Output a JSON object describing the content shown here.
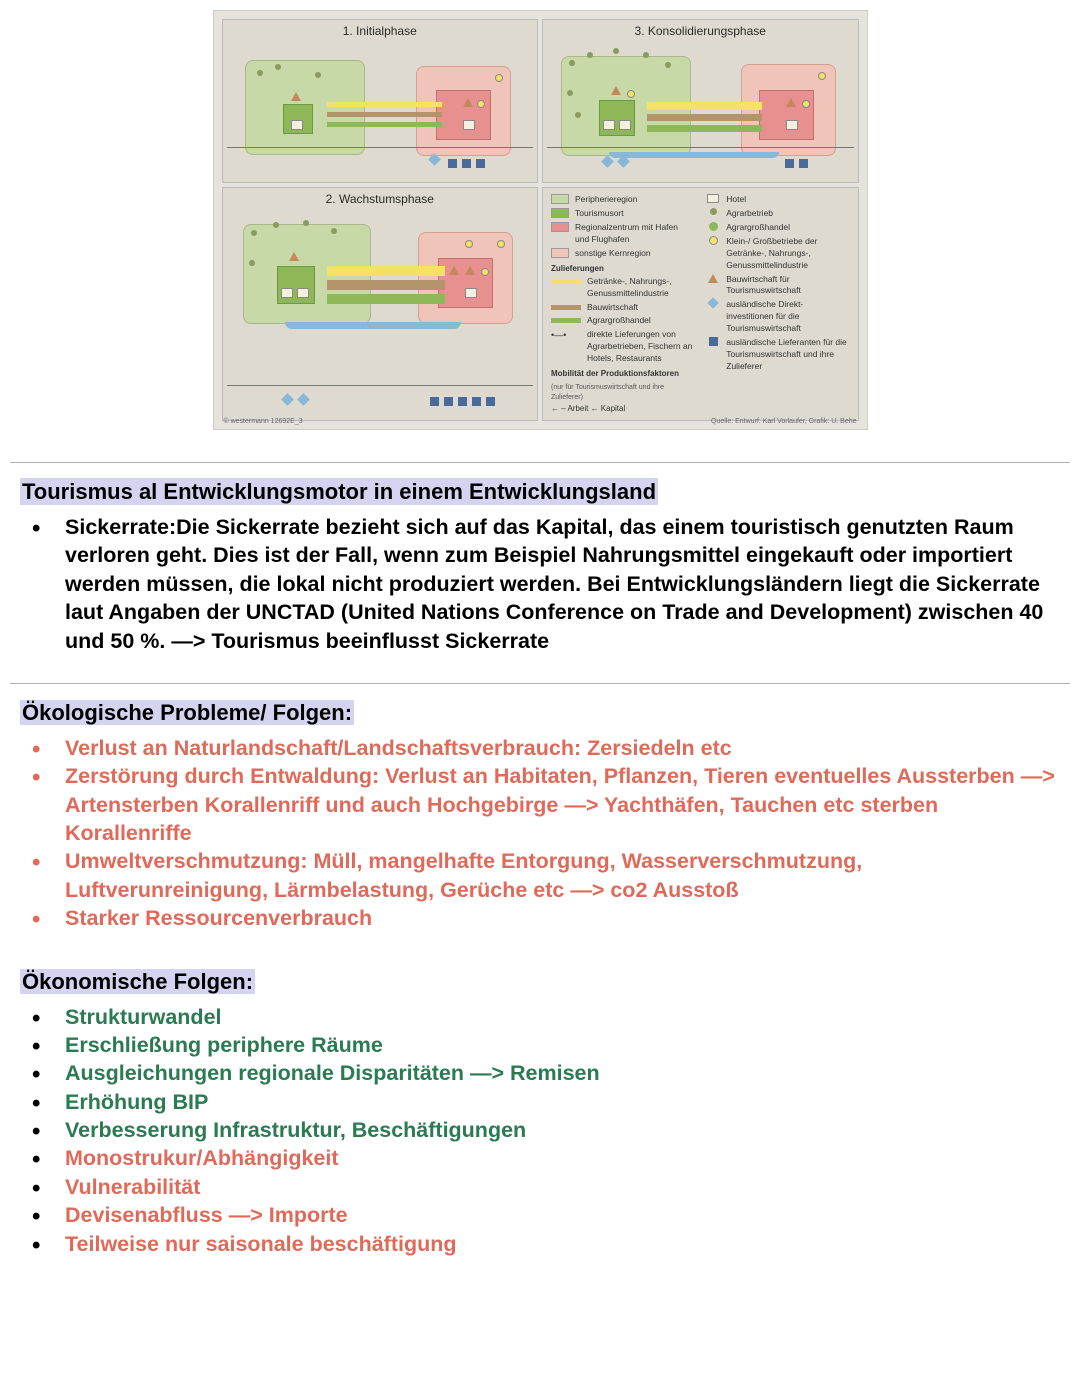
{
  "figure": {
    "panel1_title": "1. Initialphase",
    "panel2_title": "2. Wachstumsphase",
    "panel3_title": "3. Konsolidierungsphase",
    "legend": {
      "col1": [
        {
          "type": "swatch",
          "color": "#c8d9a8",
          "label": "Peripherieregion"
        },
        {
          "type": "swatch",
          "color": "#8eb858",
          "label": "Tourismusort"
        },
        {
          "type": "swatch",
          "color": "#e89090",
          "label": "Regionalzentrum mit Hafen und Flughafen"
        },
        {
          "type": "swatch",
          "color": "#f0c4b8",
          "label": "sonstige Kernregion"
        }
      ],
      "head1": "Zulieferungen",
      "arrows": [
        {
          "color": "#f5e068",
          "label": "Getränke-, Nahrungs-, Genussmittelindustrie"
        },
        {
          "color": "#b4946a",
          "label": "Bauwirtschaft"
        },
        {
          "color": "#8eb858",
          "label": "Agrargroßhandel"
        }
      ],
      "direct": "direkte Lieferungen von Agrarbetrieben, Fischern an Hotels, Restaurants",
      "head2": "Mobilität der Produktionsfaktoren",
      "sub2": "(nur für Tourismuswirtschaft und ihre Zulieferer)",
      "mob": "← – Arbeit   ← Kapital",
      "col2": [
        {
          "sym": "hotel",
          "label": "Hotel"
        },
        {
          "sym": "dot",
          "label": "Agrarbetrieb"
        },
        {
          "sym": "dot-g",
          "label": "Agrargroßhandel"
        },
        {
          "sym": "dot-y",
          "label": "Klein-/ Großbetriebe der Getränke-, Nahrungs-, Genussmittelindustrie"
        },
        {
          "sym": "tri",
          "label": "Bauwirtschaft für Tourismuswirtschaft"
        },
        {
          "sym": "dia",
          "label": "ausländische Direkt-investitionen für die Tourismuswirtschaft"
        },
        {
          "sym": "sq",
          "label": "ausländische Lieferanten für die Tourismuswirtschaft und ihre Zulieferer"
        }
      ],
      "copyright": "© westermann 12692E_3",
      "source": "Quelle: Entwurf: Karl Vorlaufer, Grafik: U. Behe"
    },
    "colors": {
      "bg_page": "#e6e3dc",
      "bg_panel": "#dedad0",
      "green_soft": "#c8d9a8",
      "green_strong": "#8eb858",
      "pink_soft": "#f0c4b8",
      "pink_strong": "#e89090",
      "yellow": "#f5e068",
      "brown": "#b4946a",
      "blue": "#88b8d8",
      "navy": "#4a6a9a",
      "olive": "#8a9a60",
      "tri": "#c4885a"
    }
  },
  "heading1": "Tourismus al Entwicklungsmotor in einem Entwicklungsland",
  "sickerrate_text": "Sickerrate:Die Sickerrate bezieht sich auf das Kapital, das einem touristisch genutzten Raum verloren geht. Dies ist der Fall, wenn zum Beispiel Nahrungsmittel eingekauft oder importiert werden müssen, die lokal nicht produziert werden. Bei Entwicklungsländern liegt die Sickerrate laut Angaben der UNCTAD (United Nations Conference on Trade and Development) zwischen 40 und 50 %.  —> Tourismus beeinflusst Sickerrate",
  "eco_problems_heading": "Ökologische Probleme/ Folgen:",
  "eco_problems": [
    "Verlust an Naturlandschaft/Landschaftsverbrauch: Zersiedeln etc",
    "Zerstörung durch Entwaldung: Verlust an Habitaten, Pflanzen, Tieren eventuelles Aussterben —> Artensterben Korallenriff und auch Hochgebirge —> Yachthäfen, Tauchen etc sterben Korallenriffe",
    "Umweltverschmutzung: Müll, mangelhafte Entorgung, Wasserverschmutzung, Luftverunreinigung, Lärmbelastung, Gerüche etc —> co2 Ausstoß",
    "Starker Ressourcenverbrauch"
  ],
  "econ_heading": "Ökonomische Folgen:",
  "econ_items": [
    {
      "text": "Strukturwandel",
      "color": "green"
    },
    {
      "text": "Erschließung periphere Räume",
      "color": "green"
    },
    {
      "text": "Ausgleichungen regionale Disparitäten —> Remisen",
      "color": "green"
    },
    {
      "text": "Erhöhung BIP",
      "color": "green"
    },
    {
      "text": "Verbesserung Infrastruktur, Beschäftigungen",
      "color": "green"
    },
    {
      "text": "Monostrukur/Abhängigkeit",
      "color": "red"
    },
    {
      "text": "Vulnerabilität",
      "color": "red"
    },
    {
      "text": "Devisenabfluss —> Importe",
      "color": "red"
    },
    {
      "text": "Teilweise nur saisonale beschäftigung",
      "color": "red"
    }
  ]
}
